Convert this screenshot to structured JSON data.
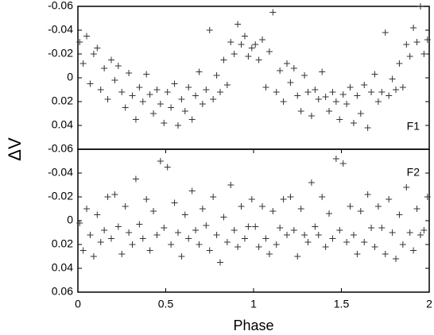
{
  "chart_data": [
    {
      "type": "scatter",
      "annotation": "F1",
      "y_label": "ΔV",
      "color": "#333333",
      "marker": "+",
      "xlim": [
        0,
        2
      ],
      "ylim": [
        -0.06,
        0.06
      ],
      "y_inverted": true,
      "yticks": [
        -0.06,
        -0.04,
        -0.02,
        0,
        0.02,
        0.04
      ],
      "x": [
        0.01,
        0.03,
        0.05,
        0.07,
        0.09,
        0.11,
        0.13,
        0.15,
        0.17,
        0.19,
        0.21,
        0.23,
        0.25,
        0.27,
        0.29,
        0.31,
        0.33,
        0.35,
        0.37,
        0.39,
        0.41,
        0.43,
        0.45,
        0.47,
        0.49,
        0.51,
        0.53,
        0.55,
        0.57,
        0.59,
        0.61,
        0.63,
        0.65,
        0.67,
        0.69,
        0.71,
        0.73,
        0.75,
        0.77,
        0.79,
        0.81,
        0.83,
        0.85,
        0.87,
        0.89,
        0.91,
        0.93,
        0.95,
        0.97,
        0.99,
        1.01,
        1.03,
        1.05,
        1.07,
        1.09,
        1.11,
        1.13,
        1.15,
        1.17,
        1.19,
        1.21,
        1.23,
        1.25,
        1.27,
        1.29,
        1.31,
        1.33,
        1.35,
        1.37,
        1.39,
        1.41,
        1.43,
        1.45,
        1.47,
        1.49,
        1.51,
        1.53,
        1.55,
        1.57,
        1.59,
        1.61,
        1.63,
        1.65,
        1.67,
        1.69,
        1.71,
        1.73,
        1.75,
        1.77,
        1.79,
        1.81,
        1.83,
        1.85,
        1.87,
        1.89,
        1.91,
        1.93,
        1.95,
        1.97,
        1.99
      ],
      "values": [
        -0.03,
        -0.012,
        -0.035,
        0.005,
        -0.02,
        -0.025,
        0.01,
        -0.008,
        0.018,
        -0.015,
        0.002,
        -0.01,
        0.012,
        0.025,
        -0.004,
        0.015,
        0.035,
        0.008,
        0.02,
        -0.003,
        0.014,
        0.03,
        0.01,
        0.022,
        0.038,
        0.012,
        0.025,
        0.005,
        0.04,
        0.018,
        0.028,
        0.008,
        0.035,
        0.015,
        -0.005,
        0.022,
        0.01,
        -0.04,
        0.018,
        -0.002,
        0.012,
        -0.015,
        0.006,
        -0.03,
        -0.02,
        -0.045,
        -0.028,
        -0.035,
        -0.018,
        -0.025,
        -0.028,
        -0.015,
        -0.032,
        0.008,
        -0.022,
        -0.055,
        0.012,
        -0.006,
        0.02,
        -0.012,
        0.004,
        -0.008,
        0.015,
        0.028,
        -0.002,
        0.012,
        0.032,
        0.01,
        0.018,
        -0.005,
        0.016,
        0.028,
        0.012,
        0.02,
        0.035,
        0.014,
        0.022,
        0.008,
        0.038,
        0.015,
        0.03,
        0.006,
        0.042,
        0.012,
        -0.003,
        0.02,
        0.012,
        -0.038,
        0.015,
        0.001,
        0.01,
        -0.012,
        0.008,
        -0.028,
        -0.018,
        -0.042,
        -0.03,
        -0.06,
        -0.02,
        -0.032
      ]
    },
    {
      "type": "scatter",
      "annotation": "F2",
      "x_label": "Phase",
      "color": "#333333",
      "marker": "+",
      "xlim": [
        0,
        2
      ],
      "ylim": [
        -0.06,
        0.06
      ],
      "y_inverted": true,
      "xticks": [
        0,
        0.5,
        1,
        1.5,
        2
      ],
      "yticks": [
        -0.06,
        -0.04,
        -0.02,
        0,
        0.02,
        0.04,
        0.06
      ],
      "x": [
        0.01,
        0.03,
        0.05,
        0.07,
        0.09,
        0.11,
        0.13,
        0.15,
        0.17,
        0.19,
        0.21,
        0.23,
        0.25,
        0.27,
        0.29,
        0.31,
        0.33,
        0.35,
        0.37,
        0.39,
        0.41,
        0.43,
        0.45,
        0.47,
        0.49,
        0.51,
        0.53,
        0.55,
        0.57,
        0.59,
        0.61,
        0.63,
        0.65,
        0.67,
        0.69,
        0.71,
        0.73,
        0.75,
        0.77,
        0.79,
        0.81,
        0.83,
        0.85,
        0.87,
        0.89,
        0.91,
        0.93,
        0.95,
        0.97,
        0.99,
        1.01,
        1.03,
        1.05,
        1.07,
        1.09,
        1.11,
        1.13,
        1.15,
        1.17,
        1.19,
        1.21,
        1.23,
        1.25,
        1.27,
        1.29,
        1.31,
        1.33,
        1.35,
        1.37,
        1.39,
        1.41,
        1.43,
        1.45,
        1.47,
        1.49,
        1.51,
        1.53,
        1.55,
        1.57,
        1.59,
        1.61,
        1.63,
        1.65,
        1.67,
        1.69,
        1.71,
        1.73,
        1.75,
        1.77,
        1.79,
        1.81,
        1.83,
        1.85,
        1.87,
        1.89,
        1.91,
        1.93,
        1.95,
        1.97,
        1.99
      ],
      "values": [
        0.002,
        0.025,
        -0.01,
        0.012,
        0.03,
        -0.005,
        0.018,
        0.008,
        -0.02,
        0.015,
        -0.022,
        0.005,
        0.028,
        -0.012,
        0.01,
        0.02,
        -0.035,
        0.003,
        0.015,
        -0.018,
        0.025,
        -0.008,
        0.012,
        -0.05,
        0.006,
        -0.045,
        0.02,
        -0.015,
        0.01,
        0.03,
        -0.005,
        0.015,
        -0.025,
        0.008,
        0.02,
        -0.01,
        0.004,
        0.025,
        -0.02,
        0.012,
        0.035,
        -0.003,
        0.018,
        -0.03,
        0.008,
        0.022,
        -0.012,
        0.015,
        0.005,
        -0.018,
        0.005,
        0.022,
        -0.012,
        0.015,
        0.028,
        -0.008,
        0.02,
        0.006,
        -0.018,
        0.012,
        -0.02,
        0.008,
        0.03,
        -0.01,
        0.012,
        0.018,
        -0.032,
        0.005,
        0.012,
        -0.02,
        0.022,
        -0.006,
        0.015,
        -0.052,
        0.008,
        -0.048,
        0.018,
        -0.012,
        0.012,
        0.028,
        -0.008,
        0.018,
        -0.022,
        0.006,
        0.022,
        -0.012,
        0.006,
        0.028,
        -0.018,
        0.01,
        0.032,
        -0.005,
        0.02,
        -0.028,
        0.01,
        0.025,
        -0.01,
        0.012,
        0.008,
        -0.02
      ]
    }
  ]
}
